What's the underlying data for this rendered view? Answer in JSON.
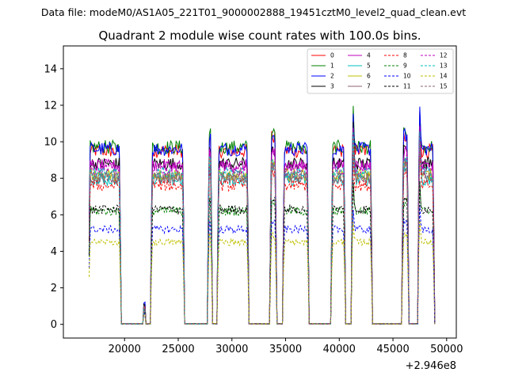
{
  "chart_data": {
    "type": "line",
    "suptitle": "Data file: modeM0/AS1A05_221T01_9000002888_19451cztM0_level2_quad_clean.evt",
    "title": "Quadrant 2 module wise count rates with 100.0s bins.",
    "xlabel": "",
    "ylabel": "",
    "x_offset_label": "+2.946e8",
    "xlim": [
      14300,
      50900
    ],
    "ylim": [
      -0.75,
      15.25
    ],
    "xticks": [
      20000,
      25000,
      30000,
      35000,
      40000,
      45000,
      50000
    ],
    "xtick_labels": [
      "20000",
      "25000",
      "30000",
      "35000",
      "40000",
      "45000",
      "50000"
    ],
    "yticks": [
      0,
      2,
      4,
      6,
      8,
      10,
      12,
      14
    ],
    "ytick_labels": [
      "0",
      "2",
      "4",
      "6",
      "8",
      "10",
      "12",
      "14"
    ],
    "grid": false,
    "legend_position": "top-right",
    "segments": [
      {
        "start": 16700,
        "end": 19600
      },
      {
        "start": 21800,
        "end": 21900
      },
      {
        "start": 22500,
        "end": 25500
      },
      {
        "start": 27800,
        "end": 28100
      },
      {
        "start": 28700,
        "end": 31500
      },
      {
        "start": 33600,
        "end": 34100
      },
      {
        "start": 34800,
        "end": 37100
      },
      {
        "start": 39300,
        "end": 40500
      },
      {
        "start": 41200,
        "end": 43000
      },
      {
        "start": 45900,
        "end": 46400
      },
      {
        "start": 47400,
        "end": 48800
      }
    ],
    "series": [
      {
        "name": "0",
        "color": "#ff0000",
        "style": "solid",
        "level": 9.5
      },
      {
        "name": "1",
        "color": "#008000",
        "style": "solid",
        "level": 9.7
      },
      {
        "name": "2",
        "color": "#0000ff",
        "style": "solid",
        "level": 9.6
      },
      {
        "name": "3",
        "color": "#000000",
        "style": "solid",
        "level": 8.8
      },
      {
        "name": "4",
        "color": "#bf00bf",
        "style": "solid",
        "level": 8.7
      },
      {
        "name": "5",
        "color": "#00bfbf",
        "style": "solid",
        "level": 7.9
      },
      {
        "name": "6",
        "color": "#bfbf00",
        "style": "solid",
        "level": 8.2
      },
      {
        "name": "7",
        "color": "#8c6070",
        "style": "solid",
        "level": 8.0
      },
      {
        "name": "8",
        "color": "#ff0000",
        "style": "dashed",
        "level": 7.6
      },
      {
        "name": "9",
        "color": "#008000",
        "style": "dashed",
        "level": 6.2
      },
      {
        "name": "10",
        "color": "#0000ff",
        "style": "dashed",
        "level": 5.2
      },
      {
        "name": "11",
        "color": "#000000",
        "style": "dashed",
        "level": 6.3
      },
      {
        "name": "12",
        "color": "#bf00bf",
        "style": "dashed",
        "level": 8.5
      },
      {
        "name": "13",
        "color": "#00bfbf",
        "style": "dashed",
        "level": 8.3
      },
      {
        "name": "14",
        "color": "#bfbf00",
        "style": "dashed",
        "level": 4.5
      },
      {
        "name": "15",
        "color": "#8c6070",
        "style": "dashed",
        "level": 8.1
      }
    ]
  }
}
